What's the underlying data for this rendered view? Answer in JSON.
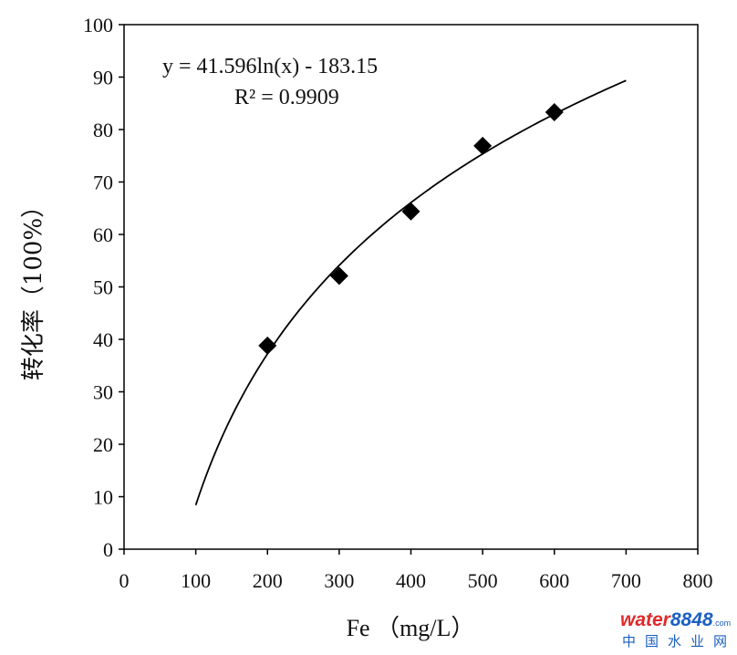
{
  "chart_data": {
    "type": "scatter",
    "xlabel": "Fe （mg/L）",
    "ylabel": "转化率（100%）",
    "xlim": [
      0,
      800
    ],
    "ylim": [
      0,
      100
    ],
    "x_ticks": [
      "0",
      "100",
      "200",
      "300",
      "400",
      "500",
      "600",
      "700",
      "800"
    ],
    "y_ticks": [
      "0",
      "10",
      "20",
      "30",
      "40",
      "50",
      "60",
      "70",
      "80",
      "90",
      "100"
    ],
    "grid": false,
    "points": {
      "x": [
        200,
        300,
        400,
        500,
        600
      ],
      "y": [
        38.8,
        52.1,
        64.4,
        76.9,
        83.3
      ]
    },
    "trendline": {
      "type": "logarithmic",
      "a": 41.596,
      "b": -183.15,
      "x_range": [
        100,
        700
      ],
      "equation": "y = 41.596ln(x) - 183.15",
      "r_squared": "R² = 0.9909"
    }
  },
  "watermark": {
    "text_a": "water",
    "text_b": "8848",
    "text_c": ".com",
    "subtitle": "中国水业网"
  },
  "colors": {
    "marker": "#000000",
    "axis": "#000000",
    "watermark_red": "#e02a2a",
    "watermark_blue": "#1a5fc0"
  }
}
